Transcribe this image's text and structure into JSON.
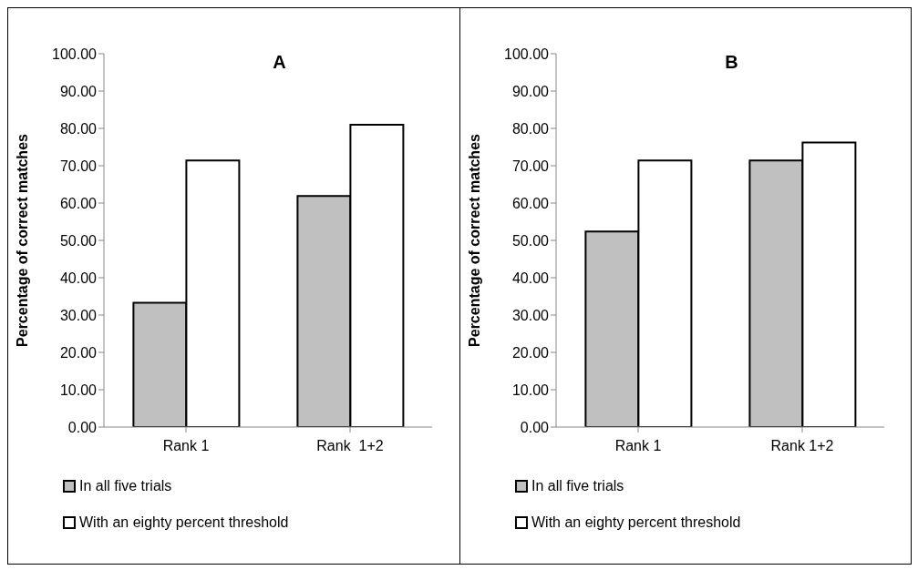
{
  "chart_data": [
    {
      "type": "bar",
      "title": "A",
      "ylabel": "Percentage of correct matches",
      "categories": [
        "Rank 1",
        "Rank  1+2"
      ],
      "series": [
        {
          "name": "In all five trials",
          "color": "#c0c0c0",
          "values": [
            33.3,
            61.9
          ]
        },
        {
          "name": "With an eighty percent threshold",
          "color": "#ffffff",
          "values": [
            71.4,
            81.0
          ]
        }
      ],
      "ylim": [
        0,
        100
      ],
      "yticks": [
        {
          "value": 0,
          "label": "0.00"
        },
        {
          "value": 10,
          "label": "10.00"
        },
        {
          "value": 20,
          "label": "20.00"
        },
        {
          "value": 30,
          "label": "30.00"
        },
        {
          "value": 40,
          "label": "40.00"
        },
        {
          "value": 50,
          "label": "50.00"
        },
        {
          "value": 60,
          "label": "60.00"
        },
        {
          "value": 70,
          "label": "70.00"
        },
        {
          "value": 80,
          "label": "80.00"
        },
        {
          "value": 90,
          "label": "90.00"
        },
        {
          "value": 100,
          "label": "100.00"
        }
      ],
      "grid": false,
      "legend": "bottom left"
    },
    {
      "type": "bar",
      "title": "B",
      "ylabel": "Percentage of correct matches",
      "categories": [
        "Rank 1",
        "Rank 1+2"
      ],
      "series": [
        {
          "name": "In all five trials",
          "color": "#c0c0c0",
          "values": [
            52.4,
            71.4
          ]
        },
        {
          "name": "With an eighty percent threshold",
          "color": "#ffffff",
          "values": [
            71.4,
            76.2
          ]
        }
      ],
      "ylim": [
        0,
        100
      ],
      "yticks": [
        {
          "value": 0,
          "label": "0.00"
        },
        {
          "value": 10,
          "label": "10.00"
        },
        {
          "value": 20,
          "label": "20.00"
        },
        {
          "value": 30,
          "label": "30.00"
        },
        {
          "value": 40,
          "label": "40.00"
        },
        {
          "value": 50,
          "label": "50.00"
        },
        {
          "value": 60,
          "label": "60.00"
        },
        {
          "value": 70,
          "label": "70.00"
        },
        {
          "value": 80,
          "label": "80.00"
        },
        {
          "value": 90,
          "label": "90.00"
        },
        {
          "value": 100,
          "label": "100.00"
        }
      ],
      "grid": false,
      "legend": "bottom left"
    }
  ]
}
